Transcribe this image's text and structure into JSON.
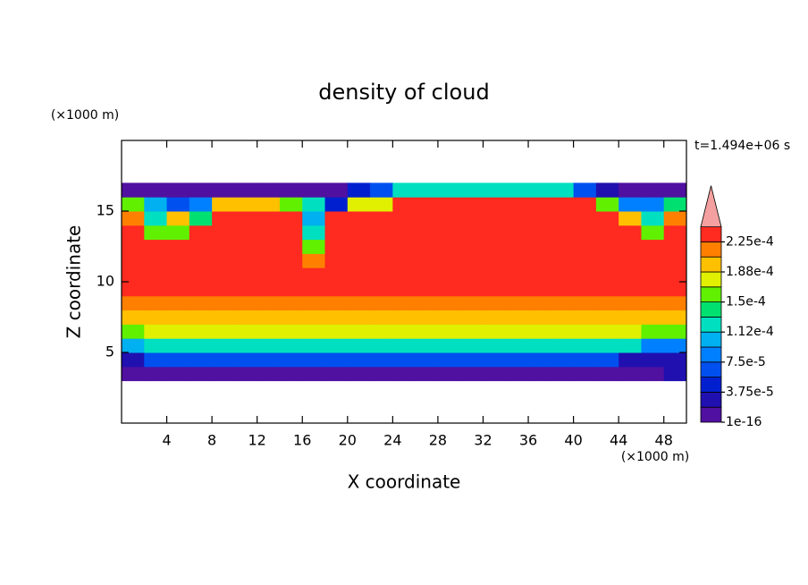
{
  "chart_data": {
    "type": "contour",
    "title": "density of cloud",
    "x_label": "X coordinate",
    "y_label": "Z coordinate",
    "x_unit": "(×1000 m)",
    "y_unit": "(×1000 m)",
    "time_label": "t=1.494e+06 s",
    "xlim": [
      0,
      50
    ],
    "ylim": [
      0,
      20
    ],
    "xticks": [
      4,
      8,
      12,
      16,
      20,
      24,
      28,
      32,
      36,
      40,
      44,
      48
    ],
    "yticks": [
      5,
      10,
      15
    ],
    "x": [
      1,
      3,
      5,
      7,
      9,
      11,
      13,
      15,
      17,
      19,
      21,
      23,
      25,
      27,
      29,
      31,
      33,
      35,
      37,
      39,
      41,
      43,
      45,
      47,
      49
    ],
    "z": [
      3.5,
      4.5,
      5.5,
      6.5,
      7.5,
      8.5,
      9.5,
      10.5,
      11.5,
      12.5,
      13.5,
      14.5,
      15.5,
      16.5
    ],
    "values": [
      [
        1e-05,
        1e-05,
        1e-05,
        1e-05,
        1e-05,
        1e-05,
        1e-05,
        1e-05,
        1e-05,
        1e-05,
        1e-05,
        1e-05,
        1e-05,
        1e-05,
        1e-05,
        1e-05,
        1e-05,
        1e-05,
        1e-05,
        1e-05,
        1e-05,
        1e-05,
        1e-05,
        1e-05,
        3e-05
      ],
      [
        3e-05,
        6e-05,
        6e-05,
        6e-05,
        6e-05,
        6e-05,
        6e-05,
        6e-05,
        6e-05,
        6e-05,
        6e-05,
        6e-05,
        6e-05,
        6e-05,
        6e-05,
        6e-05,
        6e-05,
        6e-05,
        6e-05,
        6e-05,
        6e-05,
        6e-05,
        3e-05,
        3e-05,
        3e-05
      ],
      [
        0.0001,
        0.00013,
        0.00013,
        0.00013,
        0.00013,
        0.00013,
        0.00013,
        0.00013,
        0.00013,
        0.00013,
        0.00013,
        0.00013,
        0.00013,
        0.00013,
        0.00013,
        0.00013,
        0.00013,
        0.00013,
        0.00013,
        0.00013,
        0.00013,
        0.00013,
        0.00013,
        9e-05,
        9e-05
      ],
      [
        0.00015,
        0.00017,
        0.00017,
        0.00017,
        0.00017,
        0.00017,
        0.00017,
        0.00017,
        0.00017,
        0.00017,
        0.00017,
        0.00017,
        0.00017,
        0.00017,
        0.00017,
        0.00017,
        0.00017,
        0.00017,
        0.00017,
        0.00017,
        0.00017,
        0.00017,
        0.00017,
        0.00015,
        0.00015
      ],
      [
        0.0002,
        0.0002,
        0.0002,
        0.0002,
        0.0002,
        0.0002,
        0.0002,
        0.0002,
        0.0002,
        0.0002,
        0.0002,
        0.0002,
        0.0002,
        0.0002,
        0.0002,
        0.0002,
        0.0002,
        0.0002,
        0.0002,
        0.0002,
        0.0002,
        0.0002,
        0.0002,
        0.0002,
        0.0002
      ],
      [
        0.00022,
        0.00022,
        0.00022,
        0.00022,
        0.00022,
        0.00022,
        0.00022,
        0.00022,
        0.00022,
        0.00022,
        0.00022,
        0.00022,
        0.00022,
        0.00022,
        0.00022,
        0.00022,
        0.00022,
        0.00022,
        0.00022,
        0.00022,
        0.00022,
        0.00022,
        0.00022,
        0.00022,
        0.00022
      ],
      [
        0.00024,
        0.00024,
        0.00024,
        0.00024,
        0.00024,
        0.00024,
        0.00024,
        0.00024,
        0.00024,
        0.00024,
        0.00024,
        0.00024,
        0.00024,
        0.00024,
        0.00024,
        0.00024,
        0.00024,
        0.00024,
        0.00024,
        0.00024,
        0.00024,
        0.00024,
        0.00024,
        0.00024,
        0.00024
      ],
      [
        0.00024,
        0.00024,
        0.00024,
        0.00024,
        0.00024,
        0.00024,
        0.00024,
        0.00024,
        0.00024,
        0.00024,
        0.00024,
        0.00024,
        0.00024,
        0.00024,
        0.00024,
        0.00024,
        0.00024,
        0.00024,
        0.00024,
        0.00024,
        0.00024,
        0.00024,
        0.00024,
        0.00024,
        0.00024
      ],
      [
        0.00024,
        0.00024,
        0.00024,
        0.00024,
        0.00024,
        0.00024,
        0.00024,
        0.00024,
        0.00022,
        0.00024,
        0.00024,
        0.00024,
        0.00024,
        0.00024,
        0.00024,
        0.00024,
        0.00024,
        0.00024,
        0.00024,
        0.00024,
        0.00024,
        0.00024,
        0.00024,
        0.00024,
        0.00024
      ],
      [
        0.00024,
        0.00024,
        0.00024,
        0.00024,
        0.00024,
        0.00024,
        0.00024,
        0.00024,
        0.00015,
        0.00024,
        0.00024,
        0.00024,
        0.00024,
        0.00024,
        0.00024,
        0.00024,
        0.00024,
        0.00024,
        0.00024,
        0.00024,
        0.00024,
        0.00024,
        0.00024,
        0.00024,
        0.00024
      ],
      [
        0.00024,
        0.00016,
        0.00016,
        0.00024,
        0.00024,
        0.00024,
        0.00024,
        0.00024,
        0.00013,
        0.00024,
        0.00024,
        0.00024,
        0.00024,
        0.00024,
        0.00024,
        0.00024,
        0.00024,
        0.00024,
        0.00024,
        0.00024,
        0.00024,
        0.00024,
        0.00024,
        0.00016,
        0.00024
      ],
      [
        0.00022,
        0.00012,
        0.0002,
        0.00014,
        0.00024,
        0.00024,
        0.00024,
        0.00024,
        0.0001,
        0.00024,
        0.00024,
        0.00024,
        0.00024,
        0.00024,
        0.00024,
        0.00024,
        0.00024,
        0.00024,
        0.00024,
        0.00024,
        0.00024,
        0.00024,
        0.0002,
        0.00012,
        0.00022
      ],
      [
        0.00015,
        0.00011,
        6e-05,
        8e-05,
        0.00019,
        0.00019,
        0.00019,
        0.00015,
        0.00012,
        5e-05,
        0.00018,
        0.00018,
        0.00024,
        0.00024,
        0.00024,
        0.00024,
        0.00024,
        0.00024,
        0.00024,
        0.00024,
        0.00024,
        0.00016,
        9e-05,
        8e-05,
        0.00014
      ],
      [
        1e-05,
        1e-05,
        1e-05,
        1e-05,
        1e-05,
        1e-05,
        1e-05,
        1e-05,
        1e-05,
        1e-05,
        4e-05,
        6e-05,
        0.00012,
        0.00012,
        0.00012,
        0.00012,
        0.00012,
        0.00012,
        0.00012,
        0.00012,
        6e-05,
        3e-05,
        1e-05,
        1e-05,
        1e-05
      ]
    ],
    "levels": [
      1e-16,
      1.875e-05,
      3.75e-05,
      5.625e-05,
      7.5e-05,
      9.375e-05,
      0.0001125,
      0.00013125,
      0.00015,
      0.00016875,
      0.0001875,
      0.00020625,
      0.000225,
      0.00024375
    ],
    "colors": [
      "#5010a0",
      "#2010b0",
      "#0020d0",
      "#0050f0",
      "#0080ff",
      "#00b0f0",
      "#00e0c0",
      "#00e070",
      "#60f000",
      "#e0f000",
      "#ffc000",
      "#ff8000",
      "#ff2a20"
    ],
    "extend_color": "#f4a0a0",
    "colorbar_ticks": [
      1e-16,
      {
        "value": 3.75e-05,
        "label": "3.75e-5"
      },
      {
        "value": 7.5e-05,
        "label": "7.5e-5"
      },
      {
        "value": 0.0001125,
        "label": "1.12e-4"
      },
      {
        "value": 0.00015,
        "label": "1.5e-4"
      },
      {
        "value": 0.0001875,
        "label": "1.88e-4"
      },
      {
        "value": 0.000225,
        "label": "2.25e-4"
      }
    ]
  }
}
